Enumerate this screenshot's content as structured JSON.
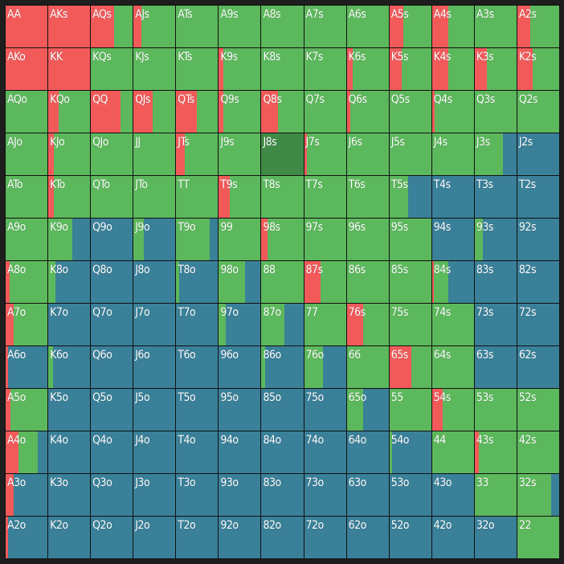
{
  "colors": {
    "raise": "#f25a5a",
    "call": "#5cb85c",
    "fold": "#3a8099",
    "selected": "#3f8a46"
  },
  "grid": {
    "rows": [
      [
        {
          "label": "AA",
          "r": 1
        },
        {
          "label": "AKs",
          "r": 1
        },
        {
          "label": "AQs",
          "r": 0.55
        },
        {
          "label": "AJs",
          "r": 0.18
        },
        {
          "label": "ATs"
        },
        {
          "label": "A9s"
        },
        {
          "label": "A8s"
        },
        {
          "label": "A7s"
        },
        {
          "label": "A6s"
        },
        {
          "label": "A5s",
          "r": 0.33
        },
        {
          "label": "A4s",
          "r": 0.38
        },
        {
          "label": "A3s"
        },
        {
          "label": "A2s",
          "r": 0.3
        }
      ],
      [
        {
          "label": "AKo",
          "r": 1
        },
        {
          "label": "KK",
          "r": 1
        },
        {
          "label": "KQs"
        },
        {
          "label": "KJs"
        },
        {
          "label": "KTs"
        },
        {
          "label": "K9s",
          "r": 0.1
        },
        {
          "label": "K8s"
        },
        {
          "label": "K7s"
        },
        {
          "label": "K6s",
          "r": 0.15
        },
        {
          "label": "K5s",
          "r": 0.3
        },
        {
          "label": "K4s",
          "r": 0.38
        },
        {
          "label": "K3s",
          "r": 0.3
        },
        {
          "label": "K2s",
          "r": 0.36
        }
      ],
      [
        {
          "label": "AQo"
        },
        {
          "label": "KQo",
          "r": 0.25
        },
        {
          "label": "QQ",
          "r": 0.7
        },
        {
          "label": "QJs",
          "r": 0.45
        },
        {
          "label": "QTs",
          "r": 0.5
        },
        {
          "label": "Q9s",
          "r": 0.1
        },
        {
          "label": "Q8s",
          "r": 0.4
        },
        {
          "label": "Q7s"
        },
        {
          "label": "Q6s",
          "r": 0.08
        },
        {
          "label": "Q5s"
        },
        {
          "label": "Q4s",
          "r": 0.06
        },
        {
          "label": "Q3s"
        },
        {
          "label": "Q2s"
        }
      ],
      [
        {
          "label": "AJo"
        },
        {
          "label": "KJo",
          "r": 0.13
        },
        {
          "label": "QJo"
        },
        {
          "label": "JJ"
        },
        {
          "label": "JTs",
          "r": 0.2
        },
        {
          "label": "J9s"
        },
        {
          "label": "J8s",
          "sel": true
        },
        {
          "label": "J7s",
          "r": 0.07
        },
        {
          "label": "J6s"
        },
        {
          "label": "J5s"
        },
        {
          "label": "J4s"
        },
        {
          "label": "J3s",
          "f": 0.33
        },
        {
          "label": "J2s",
          "f": 1
        }
      ],
      [
        {
          "label": "ATo"
        },
        {
          "label": "KTo",
          "r": 0.13
        },
        {
          "label": "QTo"
        },
        {
          "label": "JTo"
        },
        {
          "label": "TT"
        },
        {
          "label": "T9s",
          "r": 0.27
        },
        {
          "label": "T8s"
        },
        {
          "label": "T7s"
        },
        {
          "label": "T6s"
        },
        {
          "label": "T5s",
          "f": 0.55
        },
        {
          "label": "T4s",
          "f": 1
        },
        {
          "label": "T3s",
          "f": 1
        },
        {
          "label": "T2s",
          "f": 1
        }
      ],
      [
        {
          "label": "A9o"
        },
        {
          "label": "K9o",
          "f": 0.42
        },
        {
          "label": "Q9o",
          "f": 1
        },
        {
          "label": "J9o",
          "c": 0.25,
          "f": 0.75
        },
        {
          "label": "T9o",
          "f": 0.2
        },
        {
          "label": "99"
        },
        {
          "label": "98s",
          "r": 0.15
        },
        {
          "label": "97s"
        },
        {
          "label": "96s"
        },
        {
          "label": "95s"
        },
        {
          "label": "94s",
          "f": 1
        },
        {
          "label": "93s",
          "c": 0.2,
          "f": 0.8
        },
        {
          "label": "92s",
          "f": 1
        }
      ],
      [
        {
          "label": "A8o",
          "r": 0.1
        },
        {
          "label": "K8o",
          "c": 0.17,
          "f": 0.83
        },
        {
          "label": "Q8o",
          "f": 1
        },
        {
          "label": "J8o",
          "f": 1
        },
        {
          "label": "T8o",
          "c": 0.08,
          "f": 0.92
        },
        {
          "label": "98o",
          "c": 0.63,
          "f": 0.37
        },
        {
          "label": "88"
        },
        {
          "label": "87s",
          "r": 0.4
        },
        {
          "label": "86s"
        },
        {
          "label": "85s"
        },
        {
          "label": "84s",
          "r": 0.04,
          "c": 0.35,
          "f": 0.61
        },
        {
          "label": "83s",
          "f": 1
        },
        {
          "label": "82s",
          "f": 1
        }
      ],
      [
        {
          "label": "A7o",
          "r": 0.2
        },
        {
          "label": "K7o",
          "f": 1
        },
        {
          "label": "Q7o",
          "f": 1
        },
        {
          "label": "J7o",
          "f": 1
        },
        {
          "label": "T7o",
          "f": 1
        },
        {
          "label": "97o",
          "c": 0.17,
          "f": 0.83
        },
        {
          "label": "87o",
          "c": 0.55,
          "f": 0.45
        },
        {
          "label": "77"
        },
        {
          "label": "76s",
          "r": 0.4
        },
        {
          "label": "75s"
        },
        {
          "label": "74s"
        },
        {
          "label": "73s",
          "f": 1
        },
        {
          "label": "72s",
          "f": 1
        }
      ],
      [
        {
          "label": "A6o",
          "r": 0.06,
          "f": 0.94
        },
        {
          "label": "K6o",
          "c": 0.12,
          "f": 0.88
        },
        {
          "label": "Q6o",
          "f": 1
        },
        {
          "label": "J6o",
          "f": 1
        },
        {
          "label": "T6o",
          "f": 1
        },
        {
          "label": "96o",
          "f": 1
        },
        {
          "label": "86o",
          "c": 0.08,
          "f": 0.92
        },
        {
          "label": "76o",
          "c": 0.46,
          "f": 0.54
        },
        {
          "label": "66"
        },
        {
          "label": "65s",
          "r": 0.53
        },
        {
          "label": "64s"
        },
        {
          "label": "63s",
          "f": 1
        },
        {
          "label": "62s",
          "f": 1
        }
      ],
      [
        {
          "label": "A5o",
          "r": 0.12
        },
        {
          "label": "K5o",
          "f": 1
        },
        {
          "label": "Q5o",
          "f": 1
        },
        {
          "label": "J5o",
          "f": 1
        },
        {
          "label": "T5o",
          "f": 1
        },
        {
          "label": "95o",
          "f": 1
        },
        {
          "label": "85o",
          "f": 1
        },
        {
          "label": "75o",
          "f": 1
        },
        {
          "label": "65o",
          "c": 0.4,
          "f": 0.6
        },
        {
          "label": "55"
        },
        {
          "label": "54s",
          "r": 0.25
        },
        {
          "label": "53s"
        },
        {
          "label": "52s"
        }
      ],
      [
        {
          "label": "A4o",
          "r": 0.3,
          "c": 0.46,
          "f": 0.24
        },
        {
          "label": "K4o",
          "f": 1
        },
        {
          "label": "Q4o",
          "f": 1
        },
        {
          "label": "J4o",
          "f": 1
        },
        {
          "label": "T4o",
          "f": 1
        },
        {
          "label": "94o",
          "f": 1
        },
        {
          "label": "84o",
          "f": 1
        },
        {
          "label": "74o",
          "f": 1
        },
        {
          "label": "64o",
          "f": 1
        },
        {
          "label": "54o",
          "c": 0.06,
          "f": 0.94
        },
        {
          "label": "44"
        },
        {
          "label": "43s",
          "r": 0.1
        },
        {
          "label": "42s"
        }
      ],
      [
        {
          "label": "A3o",
          "r": 0.2,
          "f": 0.8
        },
        {
          "label": "K3o",
          "f": 1
        },
        {
          "label": "Q3o",
          "f": 1
        },
        {
          "label": "J3o",
          "f": 1
        },
        {
          "label": "T3o",
          "f": 1
        },
        {
          "label": "93o",
          "f": 1
        },
        {
          "label": "83o",
          "f": 1
        },
        {
          "label": "73o",
          "f": 1
        },
        {
          "label": "63o",
          "f": 1
        },
        {
          "label": "53o",
          "f": 1
        },
        {
          "label": "43o",
          "f": 1
        },
        {
          "label": "33"
        },
        {
          "label": "32s",
          "f": 0.2
        }
      ],
      [
        {
          "label": "A2o",
          "r": 0.06,
          "f": 0.94
        },
        {
          "label": "K2o",
          "f": 1
        },
        {
          "label": "Q2o",
          "f": 1
        },
        {
          "label": "J2o",
          "f": 1
        },
        {
          "label": "T2o",
          "f": 1
        },
        {
          "label": "92o",
          "f": 1
        },
        {
          "label": "82o",
          "f": 1
        },
        {
          "label": "72o",
          "f": 1
        },
        {
          "label": "62o",
          "f": 1
        },
        {
          "label": "52o",
          "f": 1
        },
        {
          "label": "42o",
          "f": 1
        },
        {
          "label": "32o",
          "f": 1
        },
        {
          "label": "22"
        }
      ]
    ]
  }
}
